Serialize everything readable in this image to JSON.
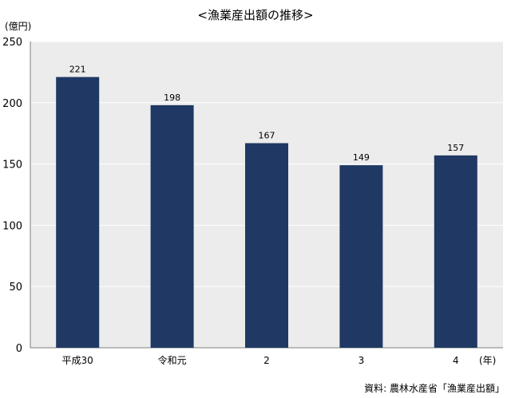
{
  "chart_data": {
    "type": "bar",
    "title": "<漁業産出額の推移>",
    "ylabel": "(億円)",
    "xlabel": "(年)",
    "categories": [
      "平成30",
      "令和元",
      "2",
      "3",
      "4"
    ],
    "values": [
      221,
      198,
      167,
      149,
      157
    ],
    "data_labels": [
      "221",
      "198",
      "167",
      "149",
      "157"
    ],
    "ylim": [
      0,
      250
    ],
    "yticks": [
      0,
      50,
      100,
      150,
      200,
      250
    ],
    "grid": true,
    "bar_color": "#1f3864",
    "plot_background": "#ececec",
    "gridline_color": "#ffffff"
  },
  "source": "資料: 農林水産省「漁業産出額」"
}
